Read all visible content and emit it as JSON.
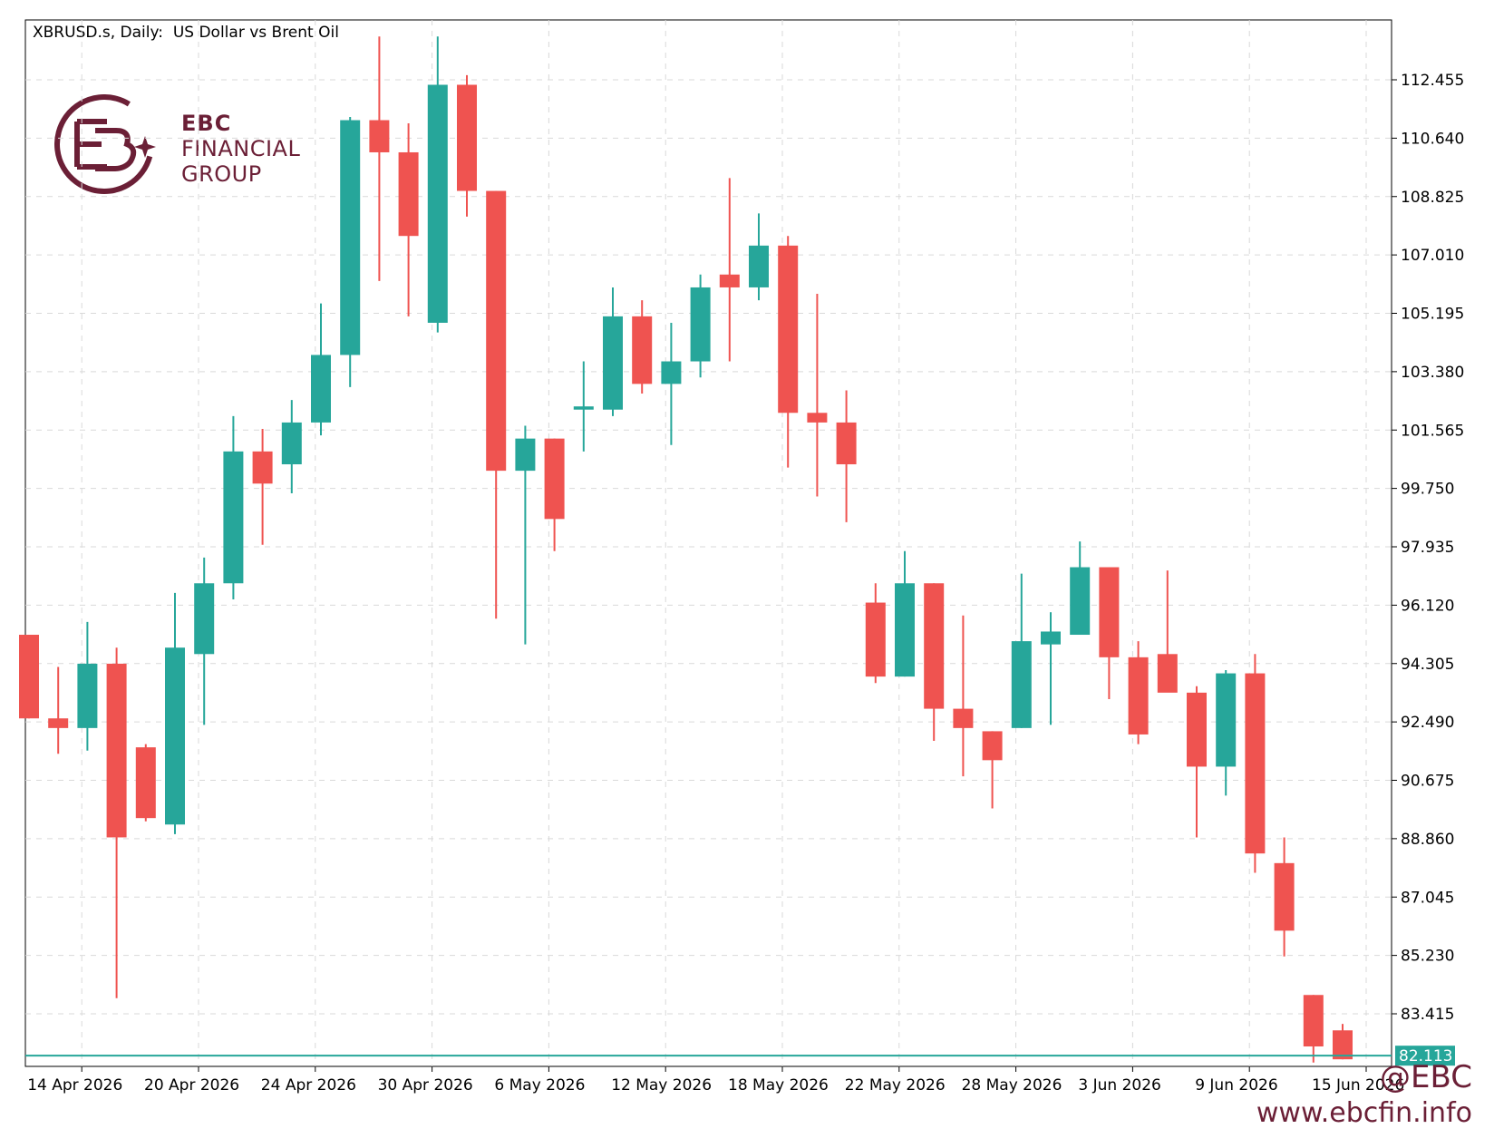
{
  "header": {
    "title": "XBRUSD.s, Daily:  US Dollar vs Brent Oil"
  },
  "logo": {
    "line1": "EBC",
    "line2": "FINANCIAL",
    "line3": "GROUP"
  },
  "watermark": {
    "handle": "@EBC",
    "url": "www.ebcfin.info"
  },
  "colors": {
    "bull": "#26a69a",
    "bear": "#ef5350",
    "grid": "#d9d9d9",
    "price_line": "#26a69a",
    "brand": "#6b1f36"
  },
  "chart_data": {
    "type": "candlestick",
    "title": "XBRUSD.s, Daily:  US Dollar vs Brent Oil",
    "y_ticks": [
      "112.455",
      "110.640",
      "108.825",
      "107.010",
      "105.195",
      "103.380",
      "101.565",
      "99.750",
      "97.935",
      "96.120",
      "94.305",
      "92.490",
      "90.675",
      "88.860",
      "87.045",
      "85.230",
      "83.415"
    ],
    "x_ticks": [
      {
        "label": "14 Apr 2026",
        "index": 1
      },
      {
        "label": "20 Apr 2026",
        "index": 5
      },
      {
        "label": "24 Apr 2026",
        "index": 9
      },
      {
        "label": "30 Apr 2026",
        "index": 13
      },
      {
        "label": "6 May 2026",
        "index": 17
      },
      {
        "label": "12 May 2026",
        "index": 21
      },
      {
        "label": "18 May 2026",
        "index": 25
      },
      {
        "label": "22 May 2026",
        "index": 29
      },
      {
        "label": "28 May 2026",
        "index": 33
      },
      {
        "label": "3 Jun 2026",
        "index": 37
      },
      {
        "label": "9 Jun 2026",
        "index": 41
      },
      {
        "label": "15 Jun 2026",
        "index": 45
      }
    ],
    "current_price": "82.113",
    "candles": [
      {
        "o": 95.2,
        "h": 95.2,
        "l": 92.6,
        "c": 92.6
      },
      {
        "o": 92.6,
        "h": 94.2,
        "l": 91.5,
        "c": 92.3
      },
      {
        "o": 92.3,
        "h": 95.6,
        "l": 91.6,
        "c": 94.3
      },
      {
        "o": 94.3,
        "h": 94.8,
        "l": 83.9,
        "c": 88.9
      },
      {
        "o": 91.7,
        "h": 91.8,
        "l": 89.4,
        "c": 89.5
      },
      {
        "o": 89.3,
        "h": 96.5,
        "l": 89.0,
        "c": 94.8
      },
      {
        "o": 94.6,
        "h": 97.6,
        "l": 92.4,
        "c": 96.8
      },
      {
        "o": 96.8,
        "h": 102.0,
        "l": 96.3,
        "c": 100.9
      },
      {
        "o": 100.9,
        "h": 101.6,
        "l": 98.0,
        "c": 99.9
      },
      {
        "o": 100.5,
        "h": 102.5,
        "l": 99.6,
        "c": 101.8
      },
      {
        "o": 101.8,
        "h": 105.5,
        "l": 101.4,
        "c": 103.9
      },
      {
        "o": 103.9,
        "h": 111.3,
        "l": 102.9,
        "c": 111.2
      },
      {
        "o": 111.2,
        "h": 113.8,
        "l": 106.2,
        "c": 110.2
      },
      {
        "o": 110.2,
        "h": 111.1,
        "l": 105.1,
        "c": 107.6
      },
      {
        "o": 104.9,
        "h": 113.8,
        "l": 104.6,
        "c": 112.3
      },
      {
        "o": 112.3,
        "h": 112.6,
        "l": 108.2,
        "c": 109.0
      },
      {
        "o": 109.0,
        "h": 109.0,
        "l": 95.7,
        "c": 100.3
      },
      {
        "o": 100.3,
        "h": 101.7,
        "l": 94.9,
        "c": 101.3
      },
      {
        "o": 101.3,
        "h": 101.3,
        "l": 97.8,
        "c": 98.8
      },
      {
        "o": 102.2,
        "h": 103.7,
        "l": 100.9,
        "c": 102.3
      },
      {
        "o": 102.2,
        "h": 106.0,
        "l": 102.0,
        "c": 105.1
      },
      {
        "o": 105.1,
        "h": 105.6,
        "l": 102.7,
        "c": 103.0
      },
      {
        "o": 103.0,
        "h": 104.9,
        "l": 101.1,
        "c": 103.7
      },
      {
        "o": 103.7,
        "h": 106.4,
        "l": 103.2,
        "c": 106.0
      },
      {
        "o": 106.4,
        "h": 109.4,
        "l": 103.7,
        "c": 106.0
      },
      {
        "o": 106.0,
        "h": 108.3,
        "l": 105.6,
        "c": 107.3
      },
      {
        "o": 107.3,
        "h": 107.6,
        "l": 100.4,
        "c": 102.1
      },
      {
        "o": 102.1,
        "h": 105.8,
        "l": 99.5,
        "c": 101.8
      },
      {
        "o": 101.8,
        "h": 102.8,
        "l": 98.7,
        "c": 100.5
      },
      {
        "o": 96.2,
        "h": 96.8,
        "l": 93.7,
        "c": 93.9
      },
      {
        "o": 93.9,
        "h": 97.8,
        "l": 93.9,
        "c": 96.8
      },
      {
        "o": 96.8,
        "h": 96.8,
        "l": 91.9,
        "c": 92.9
      },
      {
        "o": 92.9,
        "h": 95.8,
        "l": 90.8,
        "c": 92.3
      },
      {
        "o": 92.2,
        "h": 92.2,
        "l": 89.8,
        "c": 91.3
      },
      {
        "o": 92.3,
        "h": 97.1,
        "l": 92.3,
        "c": 95.0
      },
      {
        "o": 94.9,
        "h": 95.9,
        "l": 92.4,
        "c": 95.3
      },
      {
        "o": 95.2,
        "h": 98.1,
        "l": 95.2,
        "c": 97.3
      },
      {
        "o": 97.3,
        "h": 97.3,
        "l": 93.2,
        "c": 94.5
      },
      {
        "o": 94.5,
        "h": 95.0,
        "l": 91.8,
        "c": 92.1
      },
      {
        "o": 94.6,
        "h": 97.2,
        "l": 93.5,
        "c": 93.4
      },
      {
        "o": 93.4,
        "h": 93.6,
        "l": 88.9,
        "c": 91.1
      },
      {
        "o": 91.1,
        "h": 94.1,
        "l": 90.2,
        "c": 94.0
      },
      {
        "o": 94.0,
        "h": 94.6,
        "l": 87.8,
        "c": 88.4
      },
      {
        "o": 88.1,
        "h": 88.9,
        "l": 85.2,
        "c": 86.0
      },
      {
        "o": 84.0,
        "h": 84.0,
        "l": 81.9,
        "c": 82.4
      },
      {
        "o": 82.9,
        "h": 83.1,
        "l": 82.0,
        "c": 82.0
      }
    ]
  }
}
